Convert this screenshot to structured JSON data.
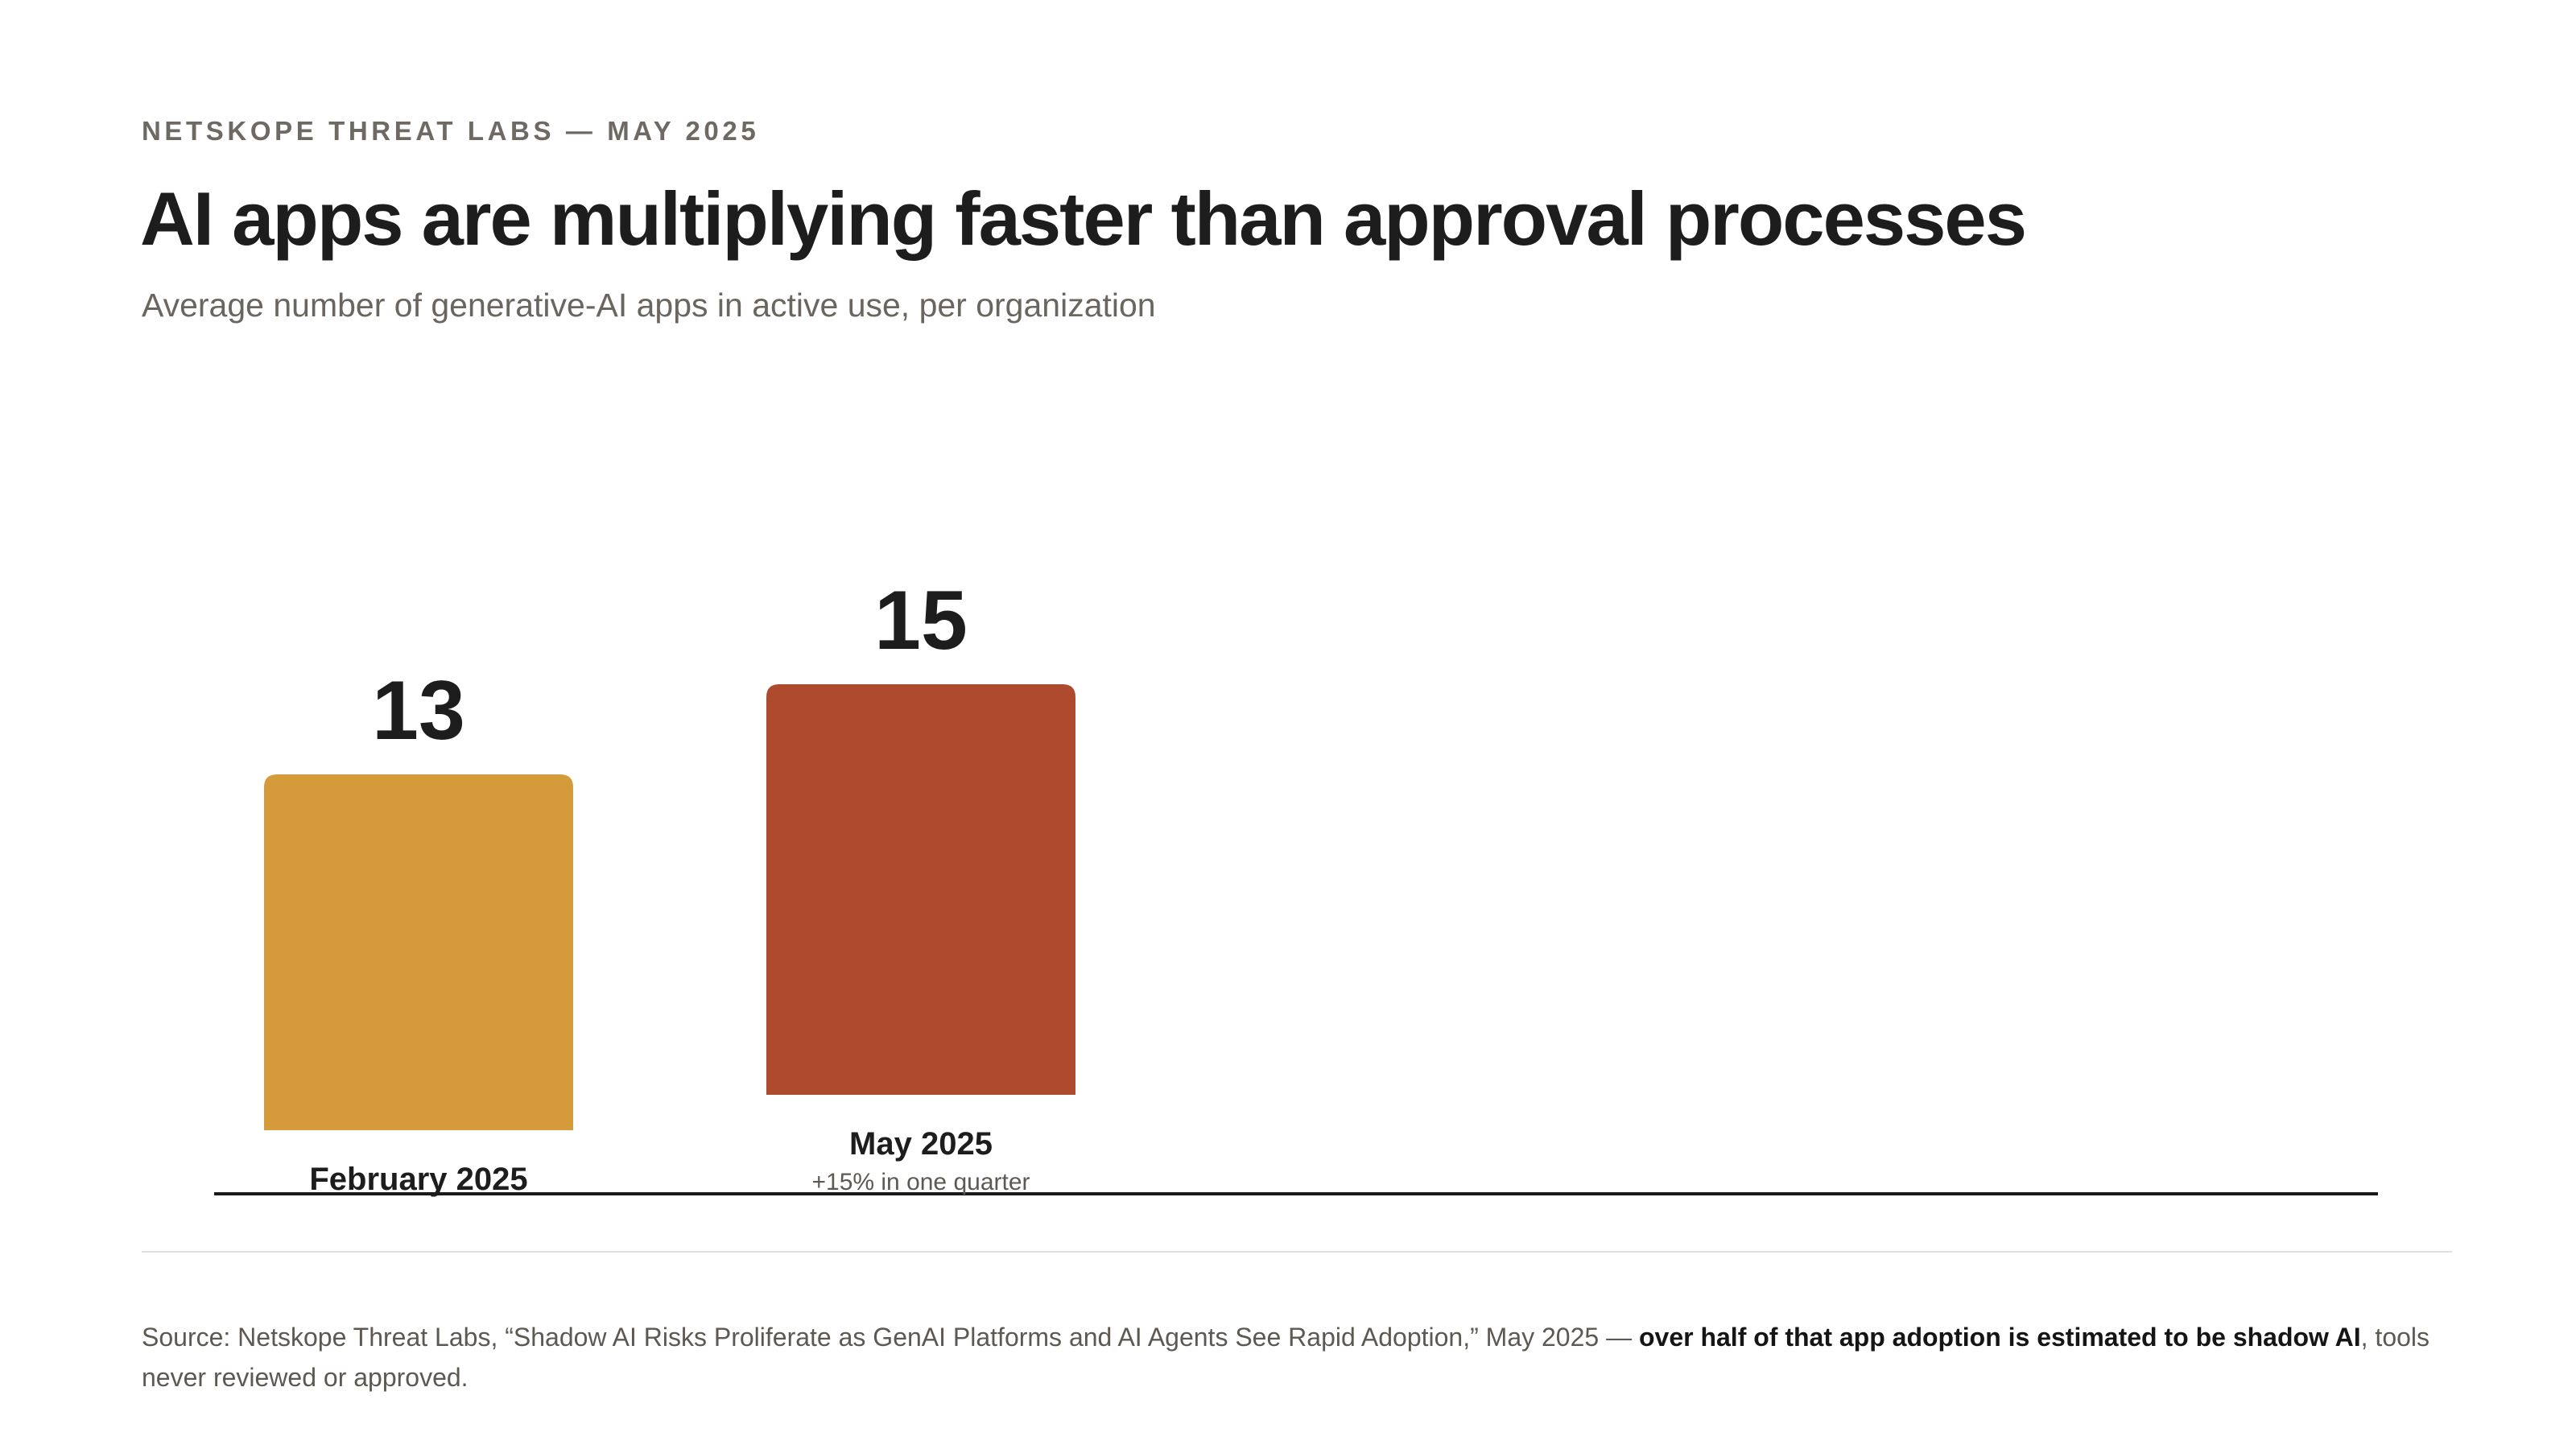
{
  "header": {
    "eyebrow": "NETSKOPE THREAT LABS — MAY 2025",
    "title": "AI apps are multiplying faster than approval processes",
    "subtitle": "Average number of generative-AI apps in active use, per organization"
  },
  "chart_data": {
    "type": "bar",
    "title": "AI apps are multiplying faster than approval processes",
    "subtitle": "Average number of generative-AI apps in active use, per organization",
    "categories": [
      "February 2025",
      "May 2025"
    ],
    "values": [
      13,
      15
    ],
    "value_labels": [
      "13",
      "15"
    ],
    "annotations": [
      "",
      "+15% in one quarter"
    ],
    "colors": [
      "#D59B3A",
      "#AE4A2E"
    ],
    "xlabel": "",
    "ylabel": "",
    "ylim": [
      0,
      20
    ],
    "grid": false,
    "legend": "none"
  },
  "footer": {
    "source_prefix": "Source: Netskope Threat Labs, “Shadow AI Risks Proliferate as GenAI Platforms and AI Agents See Rapid Adoption,” May 2025 — ",
    "source_emphasis": "over half of that app adoption is estimated to be shadow AI",
    "source_suffix": ", tools never reviewed or approved."
  },
  "colors": {
    "baseline": "#1a1a1a",
    "divider": "#e2e0dc",
    "muted_text": "#6a655e"
  }
}
